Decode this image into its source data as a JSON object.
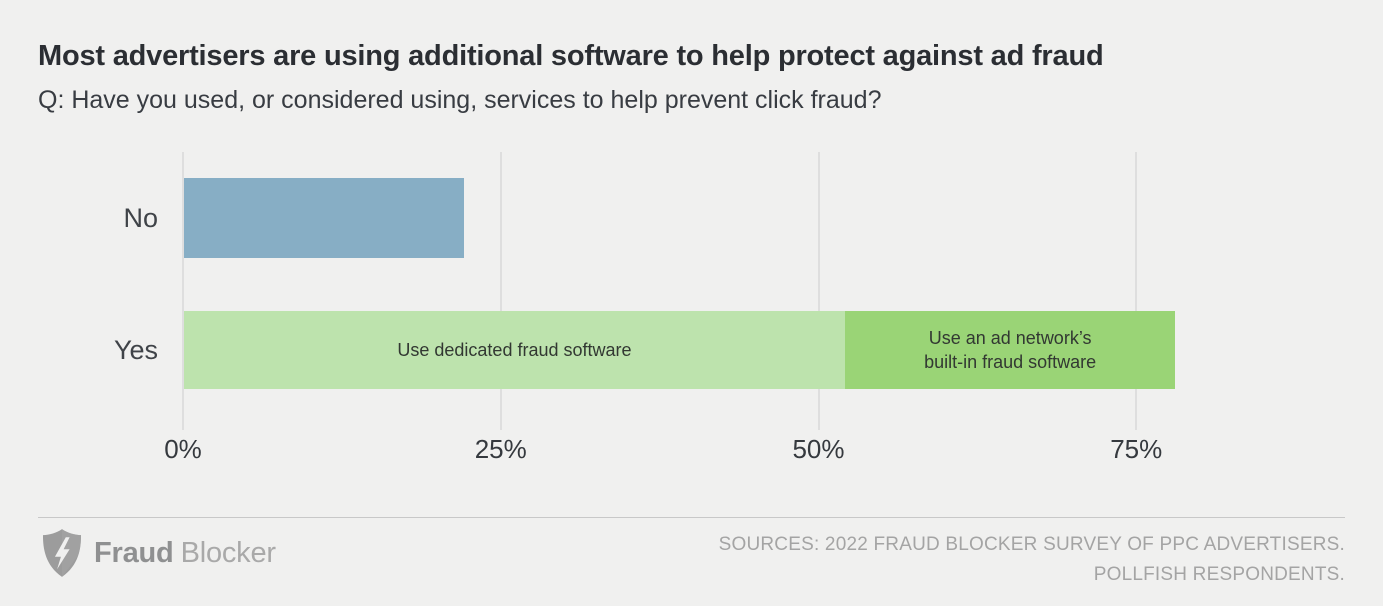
{
  "page": {
    "background_color": "#f0f0ef",
    "divider_color": "#c8c8c8"
  },
  "chart_data": {
    "type": "bar",
    "orientation": "horizontal",
    "stacked": true,
    "title": "Most advertisers are using additional software to help protect against ad fraud",
    "subtitle": "Q: Have you used, or considered using, services to help prevent click fraud?",
    "xlabel": "",
    "ylabel": "",
    "categories": [
      "No",
      "Yes"
    ],
    "xlim": [
      0,
      91
    ],
    "grid": true,
    "gridline_color": "#dedede",
    "legend_position": "none",
    "x_ticks": [
      {
        "value": 0,
        "label": "0%"
      },
      {
        "value": 25,
        "label": "25%"
      },
      {
        "value": 50,
        "label": "50%"
      },
      {
        "value": 75,
        "label": "75%"
      }
    ],
    "rows": [
      {
        "category": "No",
        "total": 22,
        "segments": [
          {
            "label": "",
            "value": 22,
            "color": "#87aec5"
          }
        ]
      },
      {
        "category": "Yes",
        "total": 78,
        "segments": [
          {
            "label": "Use dedicated fraud software",
            "value": 52,
            "color": "#bde3ad"
          },
          {
            "label": "Use an ad network’s built-in fraud software",
            "label_lines": [
              "Use an ad network’s",
              "built-in fraud software"
            ],
            "value": 26,
            "color": "#9ad476"
          }
        ]
      }
    ]
  },
  "footer": {
    "logo": {
      "word1": "Fraud",
      "word2": "Blocker",
      "icon": "shield-lightning-f",
      "icon_color": "#9c9c9c"
    },
    "sources_lines": [
      "SOURCES: 2022 FRAUD BLOCKER SURVEY OF PPC ADVERTISERS.",
      "POLLFISH RESPONDENTS."
    ]
  }
}
